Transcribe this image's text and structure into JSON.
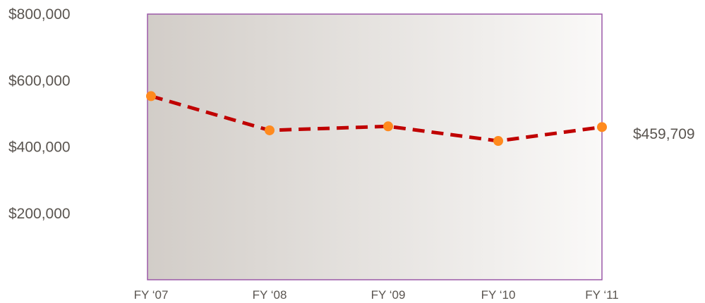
{
  "chart_data": {
    "type": "line",
    "categories": [
      "FY ‘07",
      "FY ‘08",
      "FY ‘09",
      "FY ‘10",
      "FY ‘11"
    ],
    "series": [
      {
        "values": [
          553000,
          450000,
          462000,
          418000,
          459709
        ]
      }
    ],
    "ytick_labels": [
      "$800,000",
      "$600,000",
      "$400,000",
      "$200,000"
    ],
    "ytick_values": [
      800000,
      600000,
      400000,
      200000
    ],
    "ylim": [
      0,
      800000
    ],
    "end_label": "$459,709",
    "grid": false,
    "colors": {
      "line": "#c00000",
      "marker": "#ff8a1e",
      "plot_border": "#9b59a8",
      "plot_bg_left": "#d2cdc8",
      "plot_bg_right": "#faf9f8"
    }
  }
}
